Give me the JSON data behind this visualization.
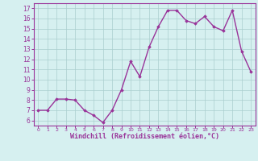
{
  "x": [
    0,
    1,
    2,
    3,
    4,
    5,
    6,
    7,
    8,
    9,
    10,
    11,
    12,
    13,
    14,
    15,
    16,
    17,
    18,
    19,
    20,
    21,
    22,
    23
  ],
  "y": [
    7.0,
    7.0,
    8.1,
    8.1,
    8.0,
    7.0,
    6.5,
    5.8,
    7.0,
    9.0,
    11.8,
    10.3,
    13.2,
    15.2,
    16.8,
    16.8,
    15.8,
    15.5,
    16.2,
    15.2,
    14.8,
    16.8,
    12.8,
    10.8
  ],
  "line_color": "#993399",
  "marker": "D",
  "marker_size": 1.8,
  "bg_color": "#d6f0f0",
  "grid_color": "#aacece",
  "xlabel": "Windchill (Refroidissement éolien,°C)",
  "xlabel_color": "#993399",
  "ylim": [
    5.5,
    17.5
  ],
  "xlim": [
    -0.5,
    23.5
  ],
  "yticks": [
    6,
    7,
    8,
    9,
    10,
    11,
    12,
    13,
    14,
    15,
    16,
    17
  ],
  "xticks": [
    0,
    1,
    2,
    3,
    4,
    5,
    6,
    7,
    8,
    9,
    10,
    11,
    12,
    13,
    14,
    15,
    16,
    17,
    18,
    19,
    20,
    21,
    22,
    23
  ],
  "tick_color": "#993399",
  "spine_color": "#993399",
  "line_width": 1.0,
  "ylabel_fontsize": 6,
  "xlabel_fontsize": 6,
  "tick_fontsize": 5.5
}
